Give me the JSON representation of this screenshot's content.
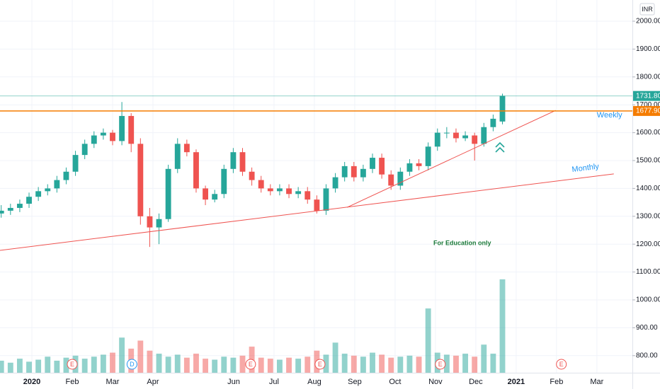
{
  "chart_data": {
    "type": "candlestick",
    "currency": "INR",
    "annotation": "For Education only",
    "up_color": "#26a69a",
    "down_color": "#ef5350",
    "x": [
      -0.76,
      -0.53,
      -0.3,
      -0.07,
      0.16,
      0.39,
      0.62,
      0.85,
      1.08,
      1.31,
      1.54,
      1.77,
      2.0,
      2.23,
      2.46,
      2.69,
      2.92,
      3.15,
      3.38,
      3.61,
      3.84,
      4.07,
      4.3,
      4.53,
      4.76,
      4.99,
      5.22,
      5.45,
      5.68,
      5.91,
      6.14,
      6.37,
      6.6,
      6.83,
      7.06,
      7.29,
      7.52,
      7.75,
      7.98,
      8.21,
      8.44,
      8.67,
      8.9,
      9.13,
      9.36,
      9.59,
      9.82,
      10.05,
      10.28,
      10.51,
      10.74,
      10.97,
      11.2,
      11.43,
      11.66
    ],
    "open": [
      1310,
      1320,
      1330,
      1345,
      1370,
      1390,
      1400,
      1430,
      1460,
      1520,
      1560,
      1590,
      1600,
      1570,
      1660,
      1560,
      1300,
      1260,
      1290,
      1470,
      1560,
      1530,
      1400,
      1360,
      1380,
      1470,
      1530,
      1460,
      1430,
      1400,
      1390,
      1400,
      1380,
      1390,
      1360,
      1320,
      1400,
      1440,
      1480,
      1440,
      1470,
      1510,
      1450,
      1410,
      1460,
      1490,
      1480,
      1550,
      1600,
      1600,
      1580,
      1590,
      1560,
      1620,
      1640
    ],
    "high": [
      1340,
      1345,
      1360,
      1385,
      1405,
      1415,
      1445,
      1475,
      1535,
      1575,
      1605,
      1615,
      1610,
      1710,
      1670,
      1580,
      1330,
      1310,
      1485,
      1580,
      1575,
      1540,
      1410,
      1395,
      1485,
      1545,
      1545,
      1475,
      1445,
      1415,
      1415,
      1415,
      1405,
      1405,
      1375,
      1415,
      1455,
      1495,
      1495,
      1485,
      1525,
      1525,
      1465,
      1475,
      1505,
      1505,
      1565,
      1615,
      1620,
      1615,
      1605,
      1600,
      1635,
      1665,
      1740
    ],
    "low": [
      1295,
      1305,
      1315,
      1330,
      1355,
      1375,
      1385,
      1415,
      1445,
      1505,
      1545,
      1575,
      1555,
      1555,
      1530,
      1270,
      1190,
      1200,
      1280,
      1455,
      1515,
      1385,
      1340,
      1350,
      1365,
      1455,
      1445,
      1410,
      1385,
      1375,
      1375,
      1365,
      1365,
      1345,
      1310,
      1305,
      1385,
      1425,
      1425,
      1425,
      1455,
      1435,
      1395,
      1395,
      1445,
      1465,
      1465,
      1535,
      1580,
      1565,
      1570,
      1500,
      1550,
      1605,
      1630
    ],
    "close": [
      1320,
      1330,
      1345,
      1370,
      1390,
      1400,
      1430,
      1460,
      1520,
      1560,
      1590,
      1600,
      1570,
      1660,
      1560,
      1300,
      1260,
      1290,
      1470,
      1560,
      1530,
      1400,
      1360,
      1380,
      1470,
      1530,
      1460,
      1430,
      1400,
      1390,
      1400,
      1380,
      1390,
      1360,
      1320,
      1400,
      1440,
      1480,
      1440,
      1470,
      1510,
      1450,
      1410,
      1460,
      1490,
      1480,
      1550,
      1600,
      1600,
      1580,
      1590,
      1560,
      1620,
      1650,
      1732
    ],
    "volume": [
      1.2,
      1.0,
      1.4,
      1.1,
      1.3,
      1.6,
      1.2,
      1.5,
      1.7,
      1.4,
      1.6,
      1.8,
      2.0,
      3.5,
      2.4,
      3.2,
      2.2,
      1.9,
      1.6,
      1.8,
      1.5,
      1.9,
      1.4,
      1.3,
      1.6,
      1.5,
      1.7,
      2.6,
      1.5,
      1.4,
      1.3,
      1.5,
      1.4,
      1.6,
      2.2,
      1.8,
      3.0,
      1.9,
      1.7,
      1.6,
      2.0,
      1.8,
      1.5,
      1.6,
      1.7,
      1.6,
      6.4,
      2.0,
      1.8,
      1.7,
      1.9,
      1.6,
      2.8,
      1.9,
      9.3
    ],
    "xlim": [
      -0.79,
      14.88
    ],
    "ylim": [
      738.6,
      2076.1
    ],
    "y2lim": [
      0,
      10
    ],
    "xticks": [
      {
        "value": 0,
        "label": "2020"
      },
      {
        "value": 1,
        "label": "Feb"
      },
      {
        "value": 2,
        "label": "Mar"
      },
      {
        "value": 3,
        "label": "Apr"
      },
      {
        "value": 5,
        "label": "Jun"
      },
      {
        "value": 6,
        "label": "Jul"
      },
      {
        "value": 7,
        "label": "Aug"
      },
      {
        "value": 8,
        "label": "Sep"
      },
      {
        "value": 9,
        "label": "Oct"
      },
      {
        "value": 10,
        "label": "Nov"
      },
      {
        "value": 11,
        "label": "Dec"
      },
      {
        "value": 12,
        "label": "2021"
      },
      {
        "value": 13,
        "label": "Feb"
      },
      {
        "value": 14,
        "label": "Mar"
      }
    ],
    "yticks": [
      {
        "value": 2000,
        "label": "2000.00"
      },
      {
        "value": 1900,
        "label": "1900.00"
      },
      {
        "value": 1800,
        "label": "1800.00"
      },
      {
        "value": 1700,
        "label": "1700.00"
      },
      {
        "value": 1600,
        "label": "1600.00"
      },
      {
        "value": 1500,
        "label": "1500.00"
      },
      {
        "value": 1400,
        "label": "1400.00"
      },
      {
        "value": 1300,
        "label": "1300.00"
      },
      {
        "value": 1200,
        "label": "1200.00"
      },
      {
        "value": 1100,
        "label": "1100.00"
      },
      {
        "value": 1000,
        "label": "1000.00"
      },
      {
        "value": 900,
        "label": "900.00"
      },
      {
        "value": 800,
        "label": "800.00"
      }
    ],
    "grid": true,
    "price_labels": [
      {
        "value": 1731.8,
        "label": "1731.80",
        "color": "#26a69a"
      },
      {
        "value": 1677.9,
        "label": "1677.90",
        "color": "#f57c00"
      }
    ],
    "trendlines": [
      {
        "name": "Monthly",
        "color": "#ef5350",
        "label_color": "#2196f3",
        "x": [
          -0.79,
          14.42
        ],
        "y": [
          1177.7,
          1452
        ]
      },
      {
        "name": "Weekly",
        "color": "#ef5350",
        "label_color": "#2196f3",
        "x": [
          7.81,
          12.98
        ],
        "y": [
          1332,
          1680
        ]
      }
    ],
    "events": [
      {
        "x": 1.0,
        "label": "E"
      },
      {
        "x": 2.48,
        "label": "D"
      },
      {
        "x": 5.42,
        "label": "E"
      },
      {
        "x": 7.14,
        "label": "E"
      },
      {
        "x": 10.12,
        "label": "E"
      },
      {
        "x": 13.12,
        "label": "E"
      }
    ]
  }
}
